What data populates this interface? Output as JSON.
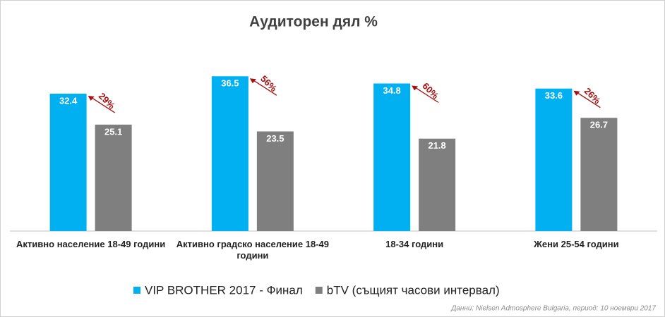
{
  "chart_data": {
    "type": "bar",
    "title": "Аудиторен дял %",
    "categories": [
      "Активно население 18-49 години",
      "Активно градско население 18-49 години",
      "18-34 години",
      "Жени 25-54 години"
    ],
    "series": [
      {
        "name": "VIP BROTHER 2017 - Финал",
        "color": "#00b0f0",
        "values": [
          32.4,
          36.5,
          34.8,
          33.6
        ]
      },
      {
        "name": "bTV (същият часови интервал)",
        "color": "#7f7f7f",
        "values": [
          25.1,
          23.5,
          21.8,
          26.7
        ]
      }
    ],
    "annotations": [
      "29%",
      "56%",
      "60%",
      "26%"
    ],
    "annotation_color": "#a50f0f",
    "source": "Данни: Nielsen Admosphere Bulgaria, период: 10 ноември 2017"
  }
}
